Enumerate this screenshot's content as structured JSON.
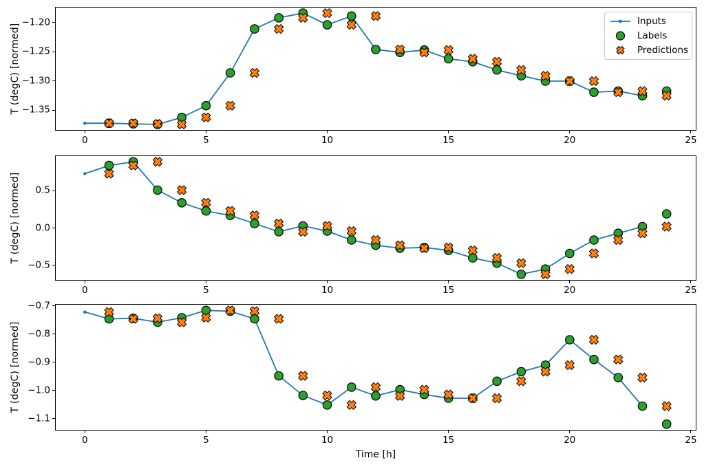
{
  "figure": {
    "xlabel": "Time [h]",
    "ylabel": "T (degC) [normed]",
    "background": "#ffffff"
  },
  "colors": {
    "inputs": "#1f77b4",
    "labels": "#2ca02c",
    "predictions": "#ff7f0e",
    "marker_edge": "#000000",
    "spine": "#000000",
    "text": "#000000"
  },
  "legend": {
    "location": "upper right",
    "items": [
      {
        "label": "Inputs",
        "marker": "line-with-dot",
        "color": "#1f77b4"
      },
      {
        "label": "Labels",
        "marker": "filled-circle",
        "color": "#2ca02c"
      },
      {
        "label": "Predictions",
        "marker": "filled-x",
        "color": "#ff7f0e"
      }
    ]
  },
  "chart_data": [
    {
      "id": "subplot-1",
      "type": "line",
      "title": "",
      "xlabel": "",
      "ylabel": "T (degC) [normed]",
      "xlim": [
        -1.2,
        25.2
      ],
      "grid": false,
      "legend_visible": true,
      "xticks": {
        "values": [
          0,
          5,
          10,
          15,
          20,
          25
        ],
        "labels": [
          "0",
          "5",
          "10",
          "15",
          "20",
          "25"
        ]
      },
      "yticks": {
        "values": [
          -1.2,
          -1.25,
          -1.3,
          -1.35
        ],
        "labels": [
          "−1.20",
          "−1.25",
          "−1.30",
          "−1.35"
        ]
      },
      "series": [
        {
          "name": "Inputs",
          "style": "line+dot",
          "color": "#1f77b4",
          "x": [
            0,
            1,
            2,
            3,
            4,
            5,
            6,
            7,
            8,
            9,
            10,
            11,
            12,
            13,
            14,
            15,
            16,
            17,
            18,
            19,
            20,
            21,
            22,
            23
          ],
          "values": [
            -1.372,
            -1.372,
            -1.373,
            -1.374,
            -1.362,
            -1.342,
            -1.286,
            -1.211,
            -1.192,
            -1.184,
            -1.204,
            -1.189,
            -1.246,
            -1.251,
            -1.247,
            -1.262,
            -1.267,
            -1.281,
            -1.291,
            -1.3,
            -1.3,
            -1.319,
            -1.317,
            -1.325
          ]
        },
        {
          "name": "Labels",
          "style": "scatter-circle",
          "color": "#2ca02c",
          "edge": "#000000",
          "x": [
            1,
            2,
            3,
            4,
            5,
            6,
            7,
            8,
            9,
            10,
            11,
            12,
            13,
            14,
            15,
            16,
            17,
            18,
            19,
            20,
            21,
            22,
            23,
            24
          ],
          "values": [
            -1.372,
            -1.373,
            -1.374,
            -1.362,
            -1.342,
            -1.286,
            -1.211,
            -1.192,
            -1.184,
            -1.204,
            -1.189,
            -1.246,
            -1.251,
            -1.247,
            -1.262,
            -1.267,
            -1.281,
            -1.291,
            -1.3,
            -1.3,
            -1.319,
            -1.317,
            -1.325,
            -1.317
          ]
        },
        {
          "name": "Predictions",
          "style": "scatter-x",
          "color": "#ff7f0e",
          "edge": "#000000",
          "x": [
            1,
            2,
            3,
            4,
            5,
            6,
            7,
            8,
            9,
            10,
            11,
            12,
            13,
            14,
            15,
            16,
            17,
            18,
            19,
            20,
            21,
            22,
            23,
            24
          ],
          "values": [
            -1.372,
            -1.372,
            -1.373,
            -1.374,
            -1.362,
            -1.342,
            -1.286,
            -1.211,
            -1.192,
            -1.184,
            -1.204,
            -1.189,
            -1.246,
            -1.251,
            -1.247,
            -1.262,
            -1.267,
            -1.281,
            -1.291,
            -1.3,
            -1.3,
            -1.319,
            -1.317,
            -1.325
          ]
        }
      ]
    },
    {
      "id": "subplot-2",
      "type": "line",
      "title": "",
      "xlabel": "",
      "ylabel": "T (degC) [normed]",
      "xlim": [
        -1.2,
        25.2
      ],
      "grid": false,
      "legend_visible": false,
      "xticks": {
        "values": [
          0,
          5,
          10,
          15,
          20,
          25
        ],
        "labels": [
          "0",
          "5",
          "10",
          "15",
          "20",
          "25"
        ]
      },
      "yticks": {
        "values": [
          0.5,
          0.0,
          -0.5
        ],
        "labels": [
          "0.5",
          "0.0",
          "−0.5"
        ]
      },
      "series": [
        {
          "name": "Inputs",
          "style": "line+dot",
          "color": "#1f77b4",
          "x": [
            0,
            1,
            2,
            3,
            4,
            5,
            6,
            7,
            8,
            9,
            10,
            11,
            12,
            13,
            14,
            15,
            16,
            17,
            18,
            19,
            20,
            21,
            22,
            23
          ],
          "values": [
            0.73,
            0.84,
            0.89,
            0.51,
            0.34,
            0.23,
            0.17,
            0.06,
            -0.05,
            0.03,
            -0.04,
            -0.16,
            -0.23,
            -0.27,
            -0.26,
            -0.3,
            -0.4,
            -0.47,
            -0.62,
            -0.55,
            -0.34,
            -0.16,
            -0.07,
            0.02
          ]
        },
        {
          "name": "Labels",
          "style": "scatter-circle",
          "color": "#2ca02c",
          "edge": "#000000",
          "x": [
            1,
            2,
            3,
            4,
            5,
            6,
            7,
            8,
            9,
            10,
            11,
            12,
            13,
            14,
            15,
            16,
            17,
            18,
            19,
            20,
            21,
            22,
            23,
            24
          ],
          "values": [
            0.84,
            0.89,
            0.51,
            0.34,
            0.23,
            0.17,
            0.06,
            -0.05,
            0.03,
            -0.04,
            -0.16,
            -0.23,
            -0.27,
            -0.26,
            -0.3,
            -0.4,
            -0.47,
            -0.62,
            -0.55,
            -0.34,
            -0.16,
            -0.07,
            0.02,
            0.19
          ]
        },
        {
          "name": "Predictions",
          "style": "scatter-x",
          "color": "#ff7f0e",
          "edge": "#000000",
          "x": [
            1,
            2,
            3,
            4,
            5,
            6,
            7,
            8,
            9,
            10,
            11,
            12,
            13,
            14,
            15,
            16,
            17,
            18,
            19,
            20,
            21,
            22,
            23,
            24
          ],
          "values": [
            0.73,
            0.84,
            0.89,
            0.51,
            0.34,
            0.23,
            0.17,
            0.06,
            -0.05,
            0.03,
            -0.04,
            -0.16,
            -0.23,
            -0.27,
            -0.26,
            -0.3,
            -0.4,
            -0.47,
            -0.62,
            -0.55,
            -0.34,
            -0.16,
            -0.07,
            0.02
          ]
        }
      ]
    },
    {
      "id": "subplot-3",
      "type": "line",
      "title": "",
      "xlabel": "Time [h]",
      "ylabel": "T (degC) [normed]",
      "xlim": [
        -1.2,
        25.2
      ],
      "grid": false,
      "legend_visible": false,
      "xticks": {
        "values": [
          0,
          5,
          10,
          15,
          20,
          25
        ],
        "labels": [
          "0",
          "5",
          "10",
          "15",
          "20",
          "25"
        ]
      },
      "yticks": {
        "values": [
          -0.7,
          -0.8,
          -0.9,
          -1.0,
          -1.1
        ],
        "labels": [
          "−0.7",
          "−0.8",
          "−0.9",
          "−1.0",
          "−1.1"
        ]
      },
      "series": [
        {
          "name": "Inputs",
          "style": "line+dot",
          "color": "#1f77b4",
          "x": [
            0,
            1,
            2,
            3,
            4,
            5,
            6,
            7,
            8,
            9,
            10,
            11,
            12,
            13,
            14,
            15,
            16,
            17,
            18,
            19,
            20,
            21,
            22,
            23
          ],
          "values": [
            -0.722,
            -0.746,
            -0.744,
            -0.758,
            -0.742,
            -0.716,
            -0.719,
            -0.746,
            -0.948,
            -1.017,
            -1.051,
            -0.988,
            -1.019,
            -0.997,
            -1.014,
            -1.027,
            -1.027,
            -0.967,
            -0.933,
            -0.91,
            -0.82,
            -0.89,
            -0.954,
            -1.055
          ]
        },
        {
          "name": "Labels",
          "style": "scatter-circle",
          "color": "#2ca02c",
          "edge": "#000000",
          "x": [
            1,
            2,
            3,
            4,
            5,
            6,
            7,
            8,
            9,
            10,
            11,
            12,
            13,
            14,
            15,
            16,
            17,
            18,
            19,
            20,
            21,
            22,
            23,
            24
          ],
          "values": [
            -0.746,
            -0.744,
            -0.758,
            -0.742,
            -0.716,
            -0.719,
            -0.746,
            -0.948,
            -1.017,
            -1.051,
            -0.988,
            -1.019,
            -0.997,
            -1.014,
            -1.027,
            -1.027,
            -0.967,
            -0.933,
            -0.91,
            -0.82,
            -0.89,
            -0.954,
            -1.055,
            -1.119
          ]
        },
        {
          "name": "Predictions",
          "style": "scatter-x",
          "color": "#ff7f0e",
          "edge": "#000000",
          "x": [
            1,
            2,
            3,
            4,
            5,
            6,
            7,
            8,
            9,
            10,
            11,
            12,
            13,
            14,
            15,
            16,
            17,
            18,
            19,
            20,
            21,
            22,
            23,
            24
          ],
          "values": [
            -0.722,
            -0.746,
            -0.744,
            -0.758,
            -0.742,
            -0.716,
            -0.719,
            -0.746,
            -0.948,
            -1.017,
            -1.051,
            -0.988,
            -1.019,
            -0.997,
            -1.014,
            -1.027,
            -1.027,
            -0.967,
            -0.933,
            -0.91,
            -0.82,
            -0.89,
            -0.954,
            -1.055
          ]
        }
      ]
    }
  ]
}
